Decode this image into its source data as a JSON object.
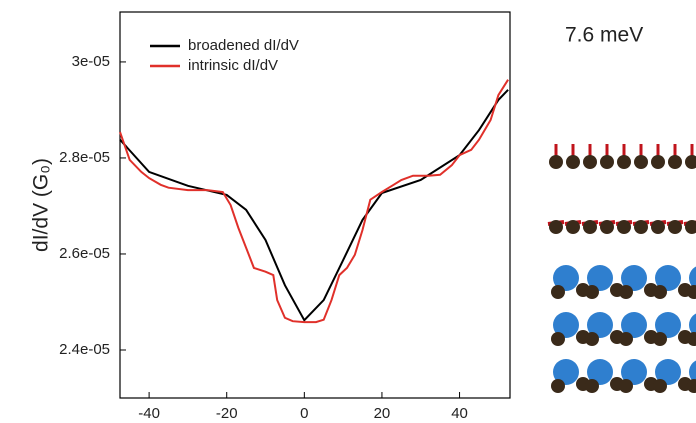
{
  "chart_data": {
    "type": "line",
    "ylabel": "dI/dV (G₀)",
    "annotation": "7.6 meV",
    "xlim": [
      -47.5,
      53
    ],
    "xticks": [
      -40,
      -20,
      0,
      20,
      40
    ],
    "ylim": [
      2.3e-05,
      3.104e-05
    ],
    "yticks": [
      {
        "value": 2.4e-05,
        "label": "2.4e-05"
      },
      {
        "value": 2.6e-05,
        "label": "2.6e-05"
      },
      {
        "value": 2.8e-05,
        "label": "2.8e-05"
      },
      {
        "value": 3e-05,
        "label": "3e-05"
      }
    ],
    "legend": "upper-left",
    "series": [
      {
        "name": "broadened dI/dV",
        "color": "#000000",
        "x": [
          -47.5,
          -40,
          -30,
          -20,
          -15,
          -10,
          -5,
          0,
          5,
          10,
          15,
          20,
          30,
          40,
          45,
          50,
          52.5
        ],
        "values": [
          2.838e-05,
          2.771e-05,
          2.742e-05,
          2.723e-05,
          2.692e-05,
          2.629e-05,
          2.535e-05,
          2.462e-05,
          2.504e-05,
          2.587e-05,
          2.671e-05,
          2.727e-05,
          2.754e-05,
          2.806e-05,
          2.858e-05,
          2.921e-05,
          2.942e-05
        ]
      },
      {
        "name": "intrinsic dI/dV",
        "color": "#e0302a",
        "x": [
          -47.5,
          -45,
          -42,
          -40,
          -37,
          -35,
          -30,
          -25,
          -21,
          -19,
          -17,
          -15,
          -13,
          -10,
          -8,
          -7,
          -5,
          -3,
          0,
          3,
          5,
          7,
          9,
          11,
          13,
          15,
          17,
          20,
          23,
          25,
          28,
          32,
          35,
          38,
          40,
          43,
          45,
          48,
          50,
          52.5
        ],
        "values": [
          2.854e-05,
          2.796e-05,
          2.771e-05,
          2.758e-05,
          2.744e-05,
          2.738e-05,
          2.733e-05,
          2.733e-05,
          2.729e-05,
          2.702e-05,
          2.654e-05,
          2.613e-05,
          2.571e-05,
          2.563e-05,
          2.556e-05,
          2.504e-05,
          2.467e-05,
          2.46e-05,
          2.458e-05,
          2.458e-05,
          2.463e-05,
          2.504e-05,
          2.556e-05,
          2.571e-05,
          2.598e-05,
          2.65e-05,
          2.713e-05,
          2.729e-05,
          2.744e-05,
          2.754e-05,
          2.763e-05,
          2.763e-05,
          2.765e-05,
          2.785e-05,
          2.806e-05,
          2.817e-05,
          2.838e-05,
          2.879e-05,
          2.931e-05,
          2.963e-05
        ]
      }
    ]
  }
}
